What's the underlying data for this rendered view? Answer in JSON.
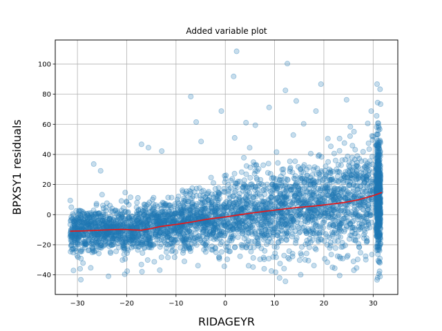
{
  "chart_data": {
    "type": "scatter",
    "title": "Added variable plot",
    "xlabel": "RIDAGEYR",
    "ylabel": "BPXSY1 residuals",
    "xlim": [
      -34.5,
      35.0
    ],
    "ylim": [
      -53.0,
      116.0
    ],
    "xticks": [
      -30,
      -20,
      -10,
      0,
      10,
      20,
      30
    ],
    "yticks": [
      -40,
      -20,
      0,
      20,
      40,
      60,
      80,
      100
    ],
    "grid": true,
    "colors": {
      "points": "#1f77b4",
      "trend": "#e31a1c"
    },
    "point_alpha": 0.25,
    "notable_points": [
      {
        "x": 2.3,
        "y": 108.5
      },
      {
        "x": 12.6,
        "y": 100.3
      },
      {
        "x": 1.7,
        "y": 91.8
      },
      {
        "x": 19.4,
        "y": 86.7
      },
      {
        "x": 30.8,
        "y": 86.7
      },
      {
        "x": 31.4,
        "y": 83.3
      },
      {
        "x": 12.2,
        "y": 82.5
      },
      {
        "x": -7.0,
        "y": 78.4
      },
      {
        "x": 24.6,
        "y": 76.3
      },
      {
        "x": 14.4,
        "y": 75.5
      },
      {
        "x": 31.5,
        "y": 73.4
      },
      {
        "x": 8.9,
        "y": 71.2
      },
      {
        "x": 18.4,
        "y": 68.8
      },
      {
        "x": -0.8,
        "y": 68.8
      },
      {
        "x": 29.6,
        "y": 68.8
      },
      {
        "x": -5.9,
        "y": 61.5
      },
      {
        "x": 4.2,
        "y": 61.1
      },
      {
        "x": 15.9,
        "y": 60.3
      },
      {
        "x": 28.9,
        "y": 60.6
      },
      {
        "x": 6.1,
        "y": 59.4
      },
      {
        "x": 13.8,
        "y": 52.9
      },
      {
        "x": 1.9,
        "y": 51.0
      },
      {
        "x": -4.9,
        "y": 48.6
      },
      {
        "x": -17.0,
        "y": 46.7
      },
      {
        "x": -12.9,
        "y": 42.2
      },
      {
        "x": -15.6,
        "y": 44.5
      },
      {
        "x": -26.7,
        "y": 33.6
      },
      {
        "x": -25.3,
        "y": 29.1
      },
      {
        "x": -1.3,
        "y": -28.4
      },
      {
        "x": -0.2,
        "y": -34.3
      },
      {
        "x": 10.2,
        "y": -38.2
      },
      {
        "x": 12.2,
        "y": -44.3
      },
      {
        "x": 15.3,
        "y": -39.9
      },
      {
        "x": 23.2,
        "y": -40.4
      },
      {
        "x": 30.8,
        "y": -43.3
      },
      {
        "x": 31.2,
        "y": -39.3
      },
      {
        "x": -29.3,
        "y": -43.2
      },
      {
        "x": -27.3,
        "y": -35.3
      },
      {
        "x": -23.7,
        "y": -40.9
      },
      {
        "x": -20.4,
        "y": -39.6
      },
      {
        "x": -19.9,
        "y": -37.5
      },
      {
        "x": -13.3,
        "y": -36.9
      },
      {
        "x": -8.3,
        "y": -31.0
      },
      {
        "x": 20.7,
        "y": -31.6
      },
      {
        "x": 24.7,
        "y": -28.1
      },
      {
        "x": 7.9,
        "y": -29.7
      }
    ],
    "trend_line": {
      "x": [
        -31.5,
        -29,
        -26,
        -23,
        -21,
        -19,
        -17,
        -15,
        -13,
        -10,
        -7,
        -4,
        -2,
        0,
        3,
        6,
        9,
        12,
        15,
        18,
        21,
        24,
        27,
        30,
        31.8
      ],
      "y": [
        -11.0,
        -10.8,
        -10.4,
        -10.0,
        -9.8,
        -10.1,
        -10.3,
        -9.2,
        -7.8,
        -6.5,
        -5.0,
        -3.2,
        -2.3,
        -1.5,
        0.0,
        1.3,
        2.6,
        3.8,
        4.9,
        5.7,
        6.8,
        8.0,
        9.9,
        12.6,
        14.8
      ]
    },
    "cloud_trend": {
      "x": [
        -31.5,
        -29,
        -26,
        -23,
        -21,
        -19,
        -17,
        -15,
        -13,
        -10,
        -7,
        -4,
        -2,
        0,
        3,
        6,
        9,
        12,
        15,
        18,
        21,
        24,
        27,
        30,
        31.8
      ],
      "y": [
        -11.0,
        -10.8,
        -10.4,
        -10.0,
        -9.8,
        -10.1,
        -10.3,
        -9.2,
        -7.8,
        -6.5,
        -5.0,
        -3.2,
        -2.3,
        -1.5,
        0.0,
        1.3,
        2.6,
        3.8,
        4.9,
        5.7,
        6.8,
        8.0,
        9.9,
        12.6,
        14.8
      ]
    },
    "cloud_spread": {
      "x": [
        -31,
        -20,
        -10,
        0,
        10,
        20,
        31
      ],
      "sd": [
        7.5,
        7.8,
        9.0,
        11.0,
        13.5,
        15.5,
        19.0
      ]
    }
  }
}
